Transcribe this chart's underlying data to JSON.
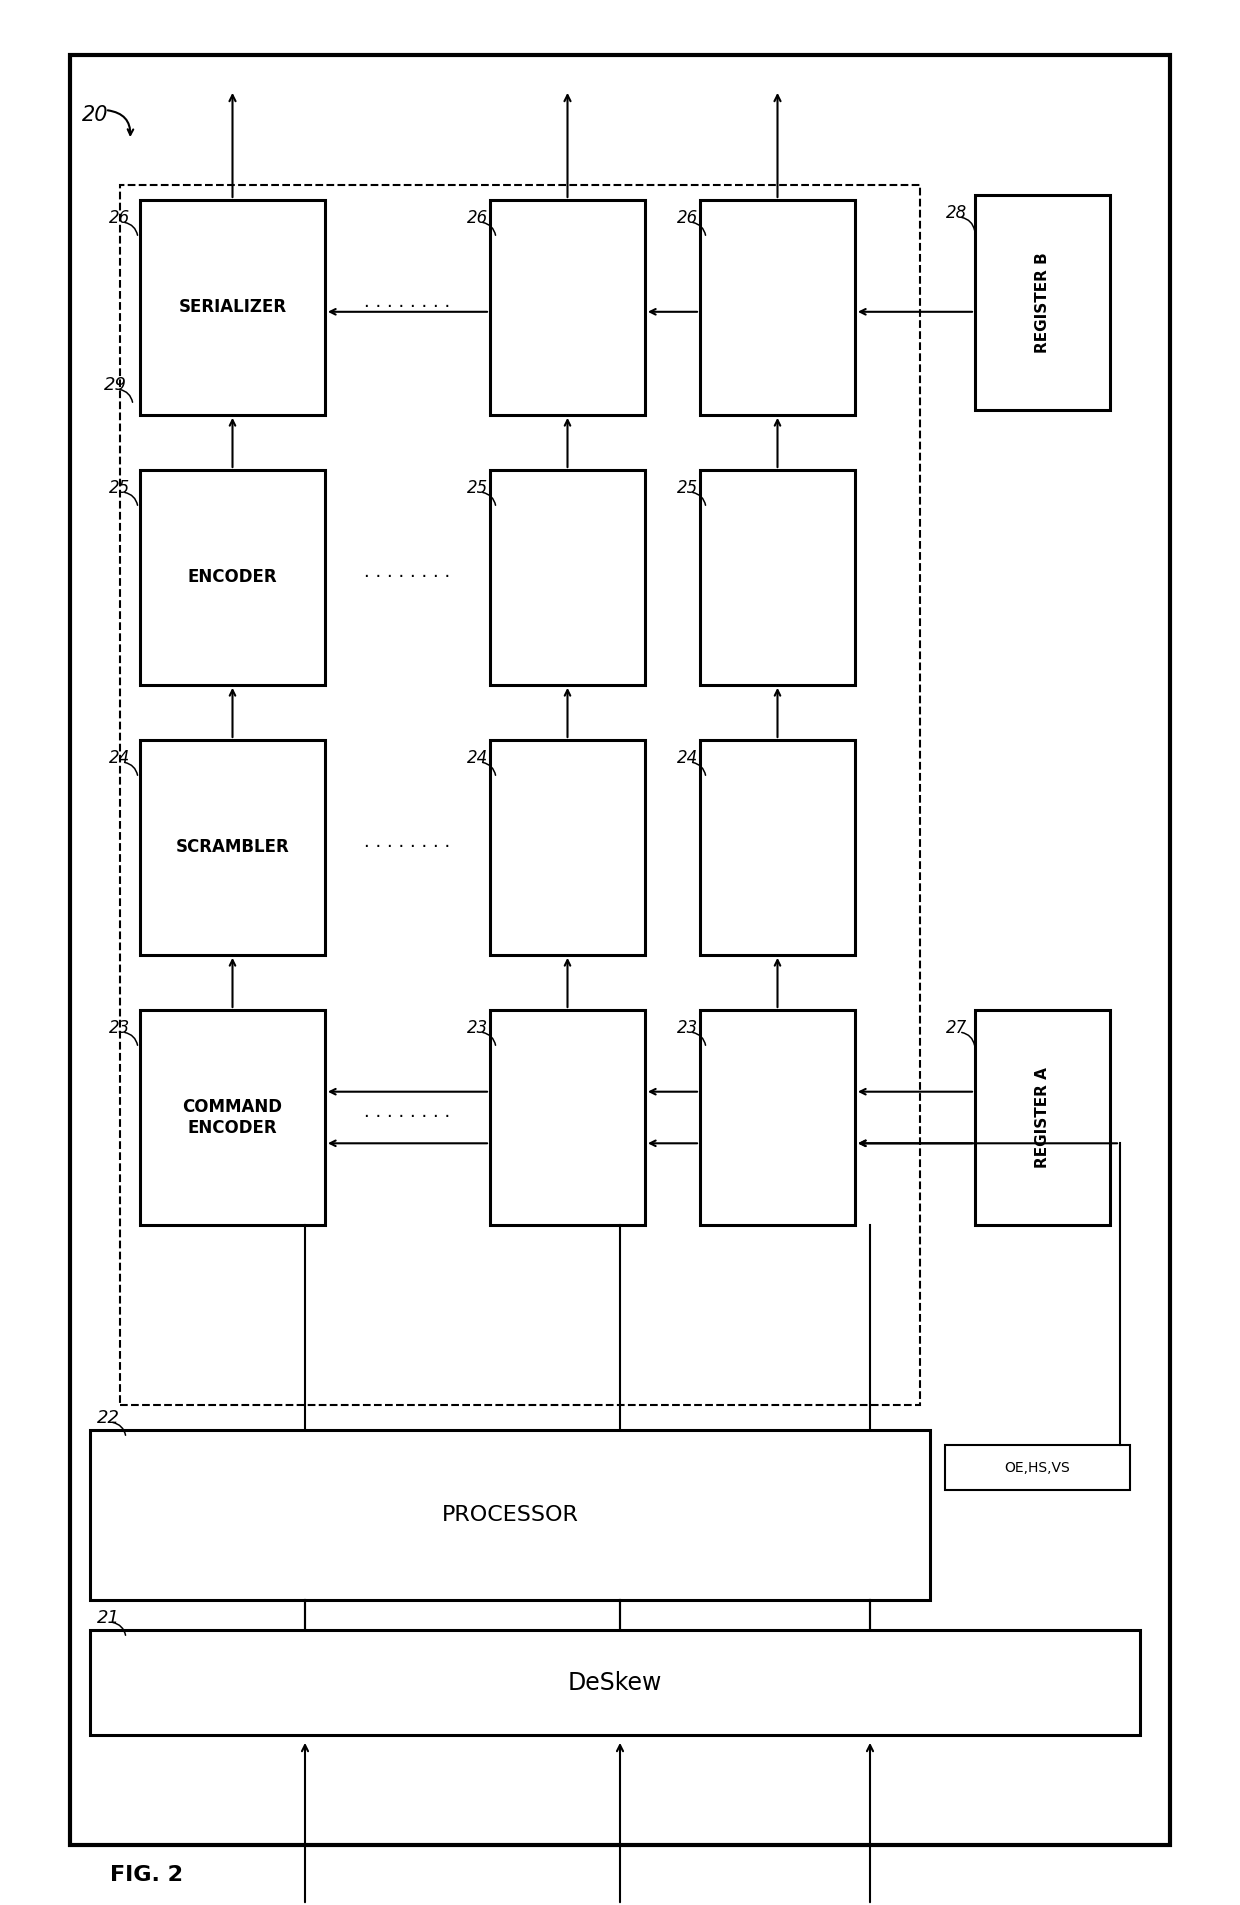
{
  "fig_label": "FIG. 2",
  "system_label": "20",
  "deskew_label": "21",
  "deskew_text": "DeSkew",
  "processor_label": "22",
  "processor_text": "PROCESSOR",
  "dashed_box_label": "29",
  "register_a_label": "27",
  "register_a_text": "REGISTER A",
  "register_b_label": "28",
  "register_b_text": "REGISTER B",
  "oe_hs_vs_text": "OE,HS,VS",
  "row_labels": [
    "23",
    "24",
    "25",
    "26"
  ],
  "row_texts": [
    "COMMAND\nENCODER",
    "SCRAMBLER",
    "ENCODER",
    "SERIALIZER"
  ],
  "bg_color": "#ffffff",
  "box_color": "#000000"
}
